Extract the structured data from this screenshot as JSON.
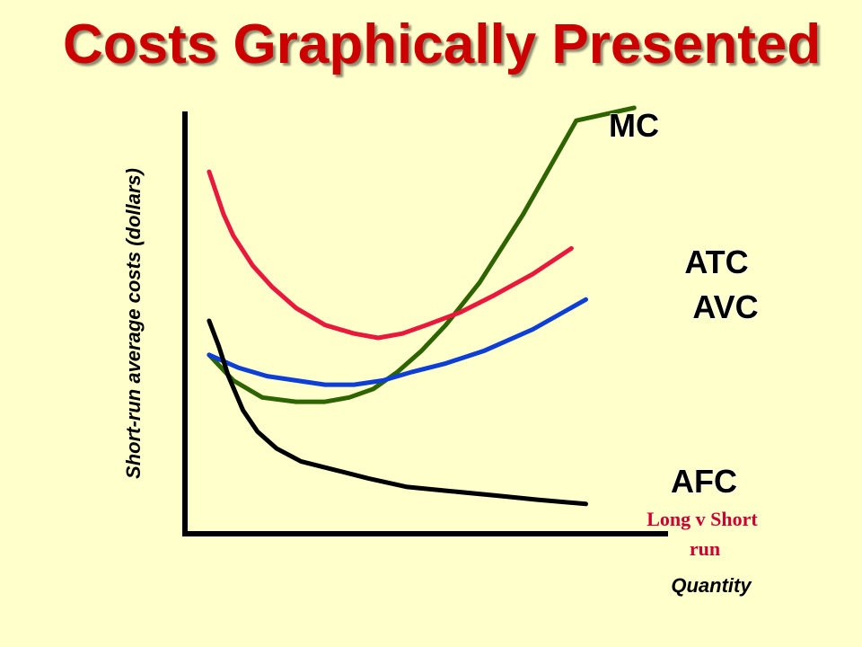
{
  "slide": {
    "title": "Costs Graphically Presented"
  },
  "note": {
    "line1": "Long v Short",
    "line2": "run"
  },
  "chart_data": {
    "type": "line",
    "xlabel": "Quantity",
    "ylabel": "Short-run average costs (dollars)",
    "grid": false,
    "legend": "none",
    "colors": {
      "MC": "#2e6400",
      "ATC": "#e8193c",
      "AVC": "#0d3ed6",
      "AFC": "#000000",
      "axis": "#000000"
    },
    "series": [
      {
        "name": "MC",
        "x": [
          0.05,
          0.1,
          0.16,
          0.23,
          0.29,
          0.34,
          0.39,
          0.44,
          0.49,
          0.54,
          0.61,
          0.7,
          0.81,
          0.93
        ],
        "y": [
          0.42,
          0.36,
          0.32,
          0.31,
          0.31,
          0.32,
          0.34,
          0.38,
          0.43,
          0.49,
          0.59,
          0.75,
          0.97,
          1.0
        ]
      },
      {
        "name": "ATC",
        "x": [
          0.05,
          0.08,
          0.1,
          0.14,
          0.18,
          0.23,
          0.29,
          0.35,
          0.4,
          0.45,
          0.5,
          0.57,
          0.64,
          0.72,
          0.8
        ],
        "y": [
          0.85,
          0.75,
          0.7,
          0.63,
          0.58,
          0.53,
          0.49,
          0.47,
          0.46,
          0.47,
          0.49,
          0.52,
          0.56,
          0.61,
          0.67
        ]
      },
      {
        "name": "AVC",
        "x": [
          0.05,
          0.11,
          0.17,
          0.23,
          0.29,
          0.35,
          0.41,
          0.47,
          0.54,
          0.62,
          0.72,
          0.83
        ],
        "y": [
          0.42,
          0.39,
          0.37,
          0.36,
          0.35,
          0.35,
          0.36,
          0.38,
          0.4,
          0.43,
          0.48,
          0.55
        ]
      },
      {
        "name": "AFC",
        "x": [
          0.05,
          0.07,
          0.09,
          0.12,
          0.15,
          0.19,
          0.24,
          0.31,
          0.38,
          0.46,
          0.55,
          0.64,
          0.73,
          0.83
        ],
        "y": [
          0.5,
          0.44,
          0.37,
          0.29,
          0.24,
          0.2,
          0.17,
          0.15,
          0.13,
          0.11,
          0.1,
          0.09,
          0.08,
          0.07
        ]
      }
    ]
  }
}
